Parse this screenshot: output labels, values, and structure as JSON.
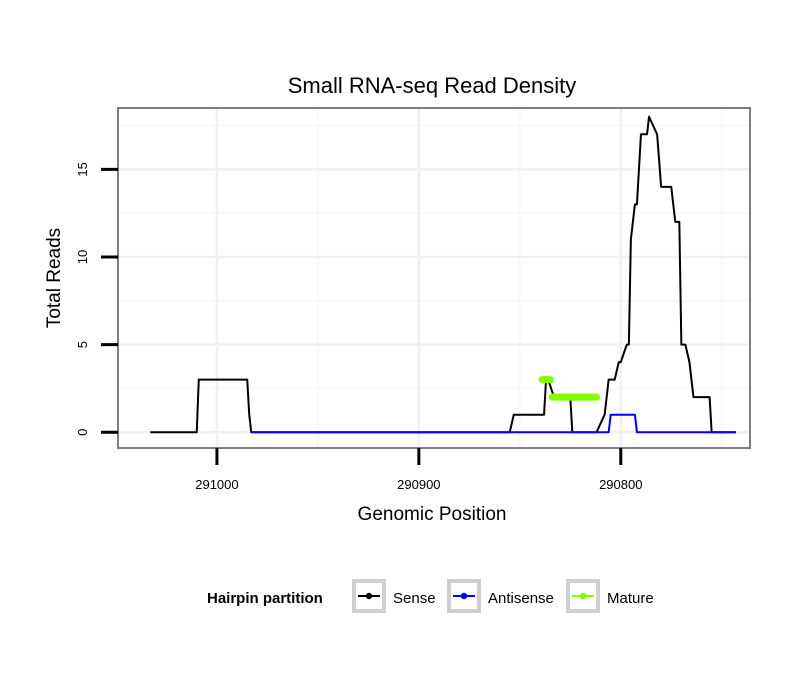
{
  "chart_data": {
    "type": "line",
    "title": "Small RNA-seq Read Density",
    "xlabel": "Genomic Position",
    "ylabel": "Total Reads",
    "x_reversed": true,
    "xlim": [
      291049,
      290736
    ],
    "ylim": [
      -0.9,
      18.5
    ],
    "x_ticks": [
      291000,
      290900,
      290800
    ],
    "x_tick_labels": [
      "291000",
      "290900",
      "290800"
    ],
    "y_ticks": [
      0,
      5,
      10,
      15
    ],
    "y_tick_labels": [
      "0",
      "5",
      "10",
      "15"
    ],
    "grid": true,
    "legend": {
      "title": "Hairpin partition",
      "position": "bottom",
      "entries": [
        {
          "name": "Sense",
          "color": "#000000"
        },
        {
          "name": "Antisense",
          "color": "#0000ff"
        },
        {
          "name": "Mature",
          "color": "#7fff00"
        }
      ]
    },
    "series": [
      {
        "name": "Sense",
        "color": "#000000",
        "x": [
          291033,
          291010,
          291009,
          290985,
          290984,
          290983,
          290855,
          290853,
          290838,
          290837,
          290836,
          290833,
          290825,
          290824,
          290822,
          290812,
          290808,
          290806,
          290803,
          290801,
          290800,
          290797,
          290796,
          290795,
          290793,
          290792,
          290790,
          290787,
          290786,
          290782,
          290780,
          290778,
          290775,
          290773,
          290771,
          290770,
          290768,
          290766,
          290765,
          290764,
          290756,
          290755,
          290754,
          290752,
          290749,
          290747,
          290746,
          290743
        ],
        "y": [
          0,
          0,
          3,
          3,
          1,
          0,
          0,
          1,
          1,
          3,
          3,
          2,
          2,
          0,
          0,
          0,
          1,
          3,
          3,
          4,
          4,
          5,
          5,
          11,
          13,
          13,
          17,
          17,
          18,
          17,
          14,
          14,
          14,
          12,
          12,
          5,
          5,
          4,
          3,
          2,
          2,
          0,
          0,
          0,
          0,
          0,
          0,
          0
        ]
      },
      {
        "name": "Antisense",
        "color": "#0000ff",
        "x": [
          290983,
          290806,
          290805,
          290793,
          290792,
          290762,
          290743
        ],
        "y": [
          0,
          0,
          1,
          1,
          0,
          0,
          0
        ]
      },
      {
        "name": "Mature",
        "color": "#7fff00",
        "segments": [
          {
            "x": [
              290839,
              290835
            ],
            "y": [
              3,
              3
            ]
          },
          {
            "x": [
              290834,
              290812
            ],
            "y": [
              2,
              2
            ]
          }
        ]
      }
    ]
  }
}
